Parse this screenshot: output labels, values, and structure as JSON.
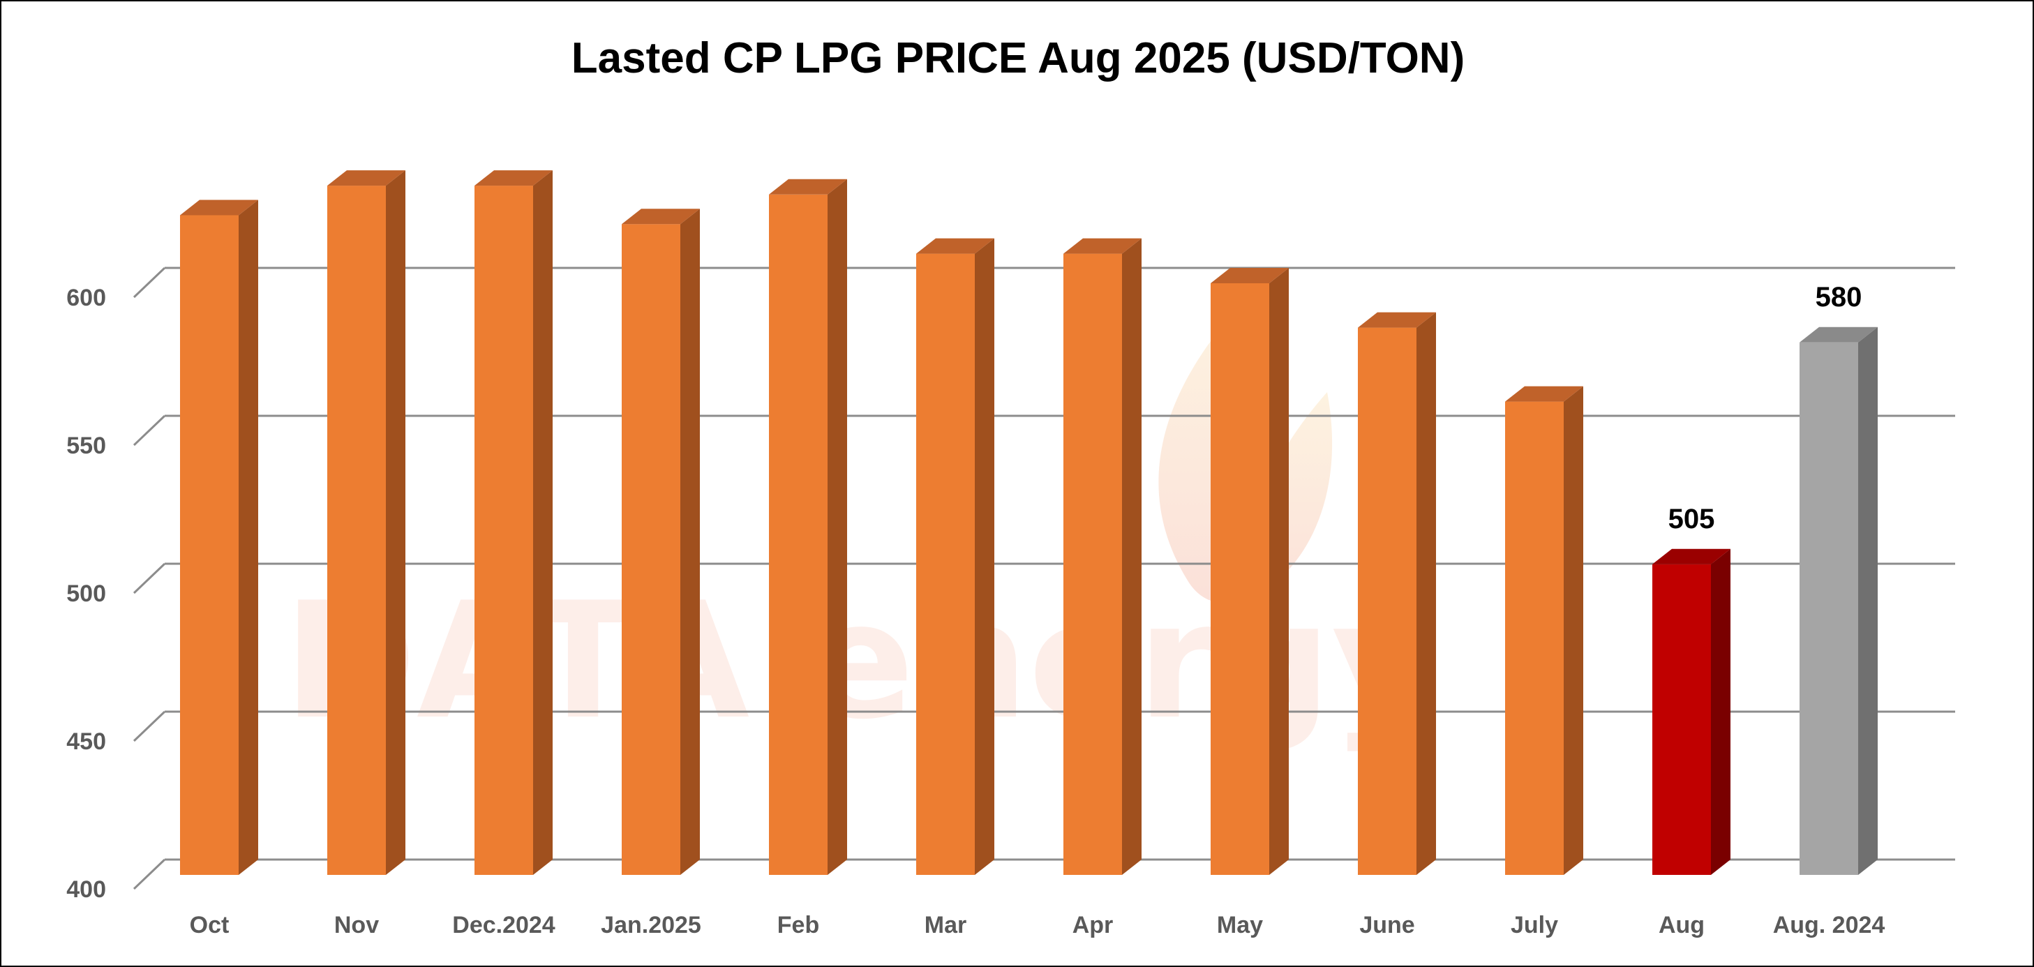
{
  "chart_data": {
    "type": "bar",
    "title": "Lasted CP LPG PRICE Aug 2025 (USD/TON)",
    "categories": [
      "Oct",
      "Nov",
      "Dec.2024",
      "Jan.2025",
      "Feb",
      "Mar",
      "Apr",
      "May",
      "June",
      "July",
      "Aug",
      "Aug. 2024"
    ],
    "series": [
      {
        "values": [
          623,
          633,
          633,
          620,
          630,
          610,
          610,
          600,
          585,
          560,
          505,
          580
        ]
      }
    ],
    "data_labels": [
      null,
      null,
      null,
      null,
      null,
      null,
      null,
      null,
      null,
      null,
      "505",
      "580"
    ],
    "bar_colors": [
      "#ED7D31",
      "#ED7D31",
      "#ED7D31",
      "#ED7D31",
      "#ED7D31",
      "#ED7D31",
      "#ED7D31",
      "#ED7D31",
      "#ED7D31",
      "#ED7D31",
      "#C00000",
      "#A5A5A5"
    ],
    "bar_side_colors": [
      "#A0501E",
      "#A0501E",
      "#A0501E",
      "#A0501E",
      "#A0501E",
      "#A0501E",
      "#A0501E",
      "#A0501E",
      "#A0501E",
      "#A0501E",
      "#7A0000",
      "#707070"
    ],
    "bar_top_colors": [
      "#C0622A",
      "#C0622A",
      "#C0622A",
      "#C0622A",
      "#C0622A",
      "#C0622A",
      "#C0622A",
      "#C0622A",
      "#C0622A",
      "#C0622A",
      "#9A0000",
      "#8A8A8A"
    ],
    "yticks": [
      400,
      450,
      500,
      550,
      600
    ],
    "ylim": [
      400,
      650
    ],
    "grid": true,
    "legend": "none",
    "three_d": true,
    "watermark": "DATA energy"
  }
}
